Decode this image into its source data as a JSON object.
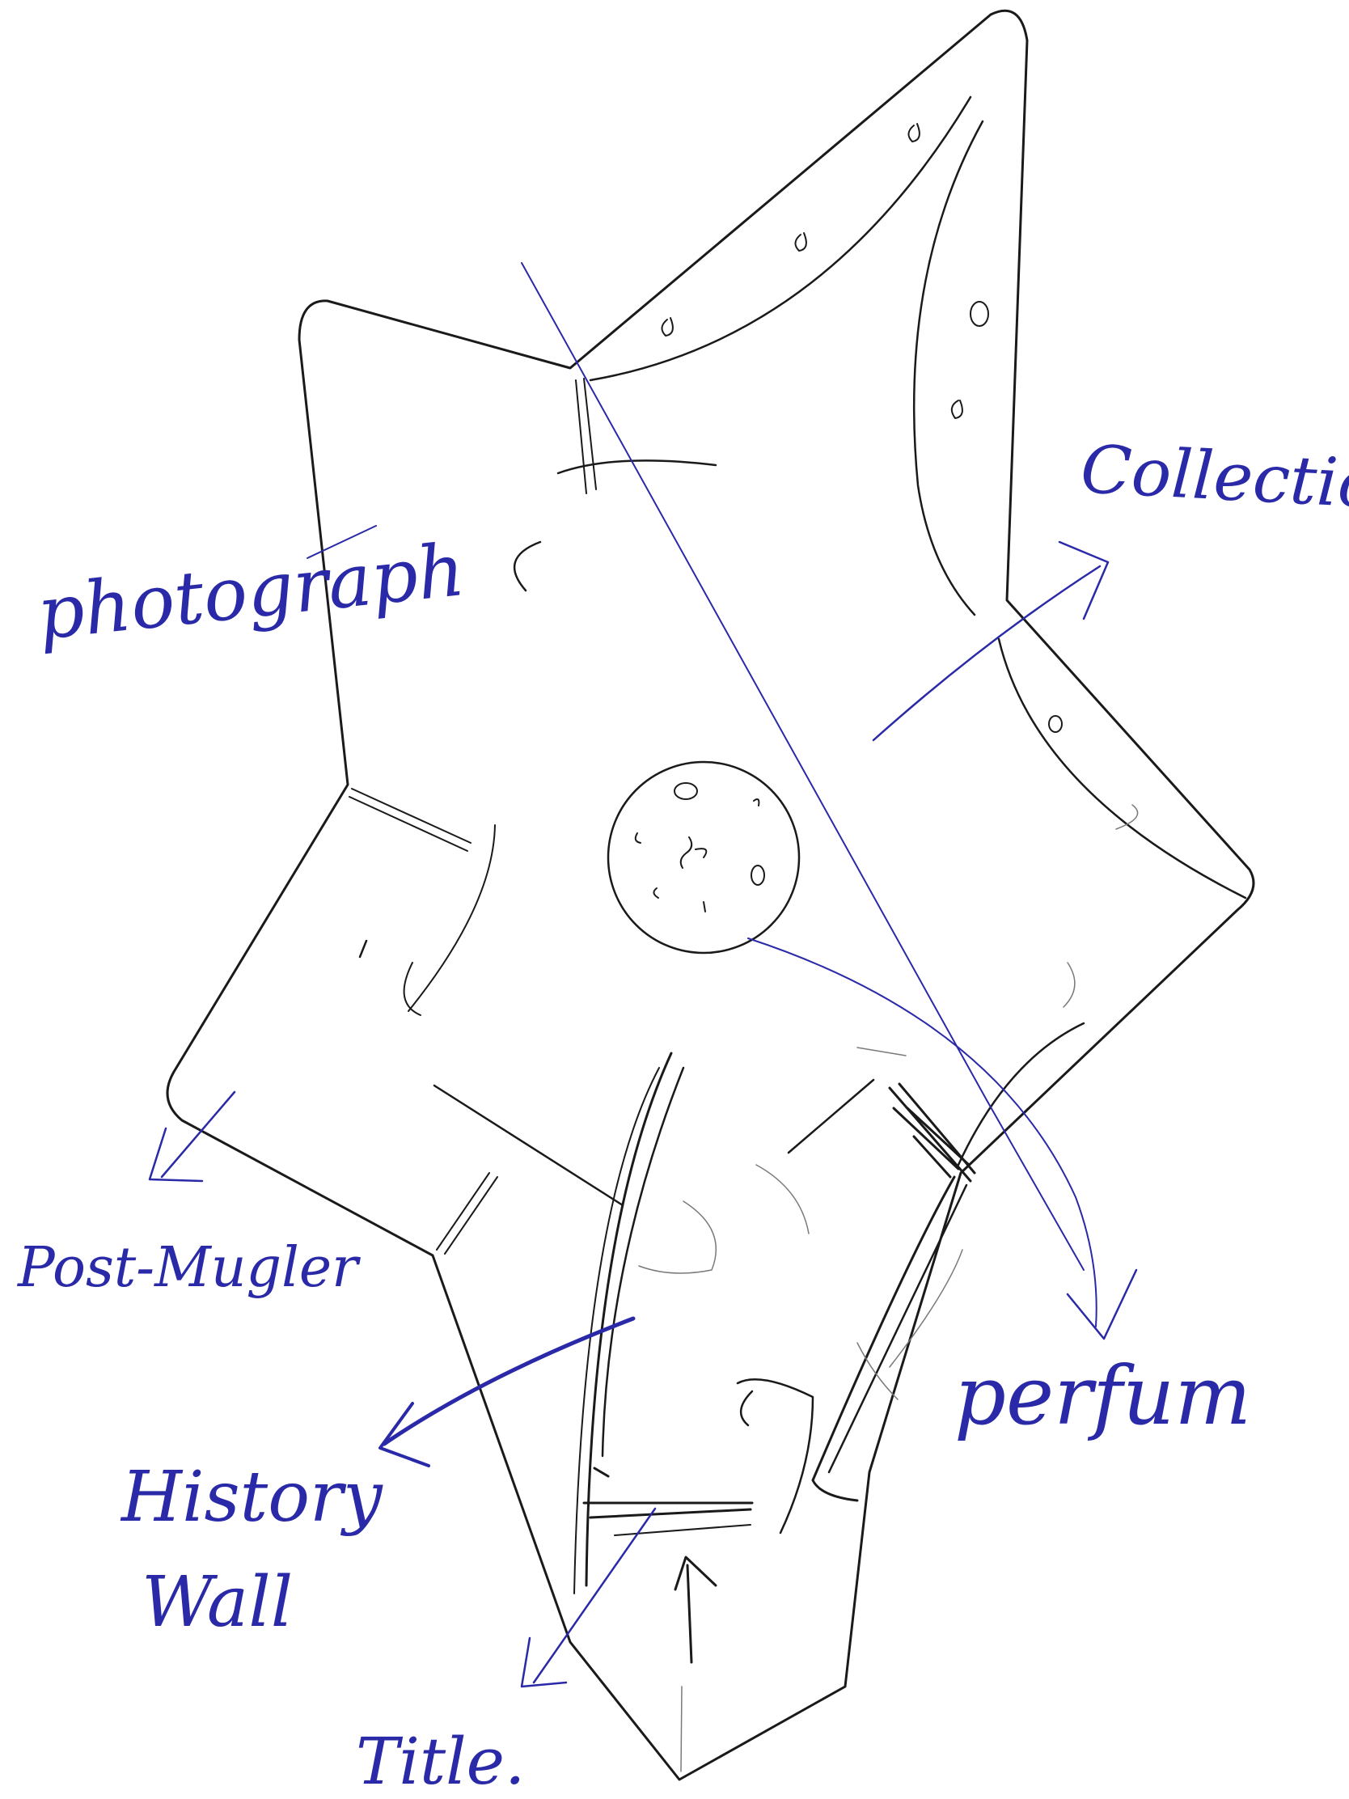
{
  "sketch": {
    "ink_color": "#1a1a1a",
    "pencil_color": "#7a7a7a",
    "annotation_color": "#2a2aa8",
    "background": "#ffffff"
  },
  "labels": {
    "collections": "Collections",
    "photograph": "photograph",
    "post_mugler": "Post-Mugler",
    "perfum": "perfum",
    "history": "History",
    "wall": "Wall",
    "title": "Title."
  }
}
